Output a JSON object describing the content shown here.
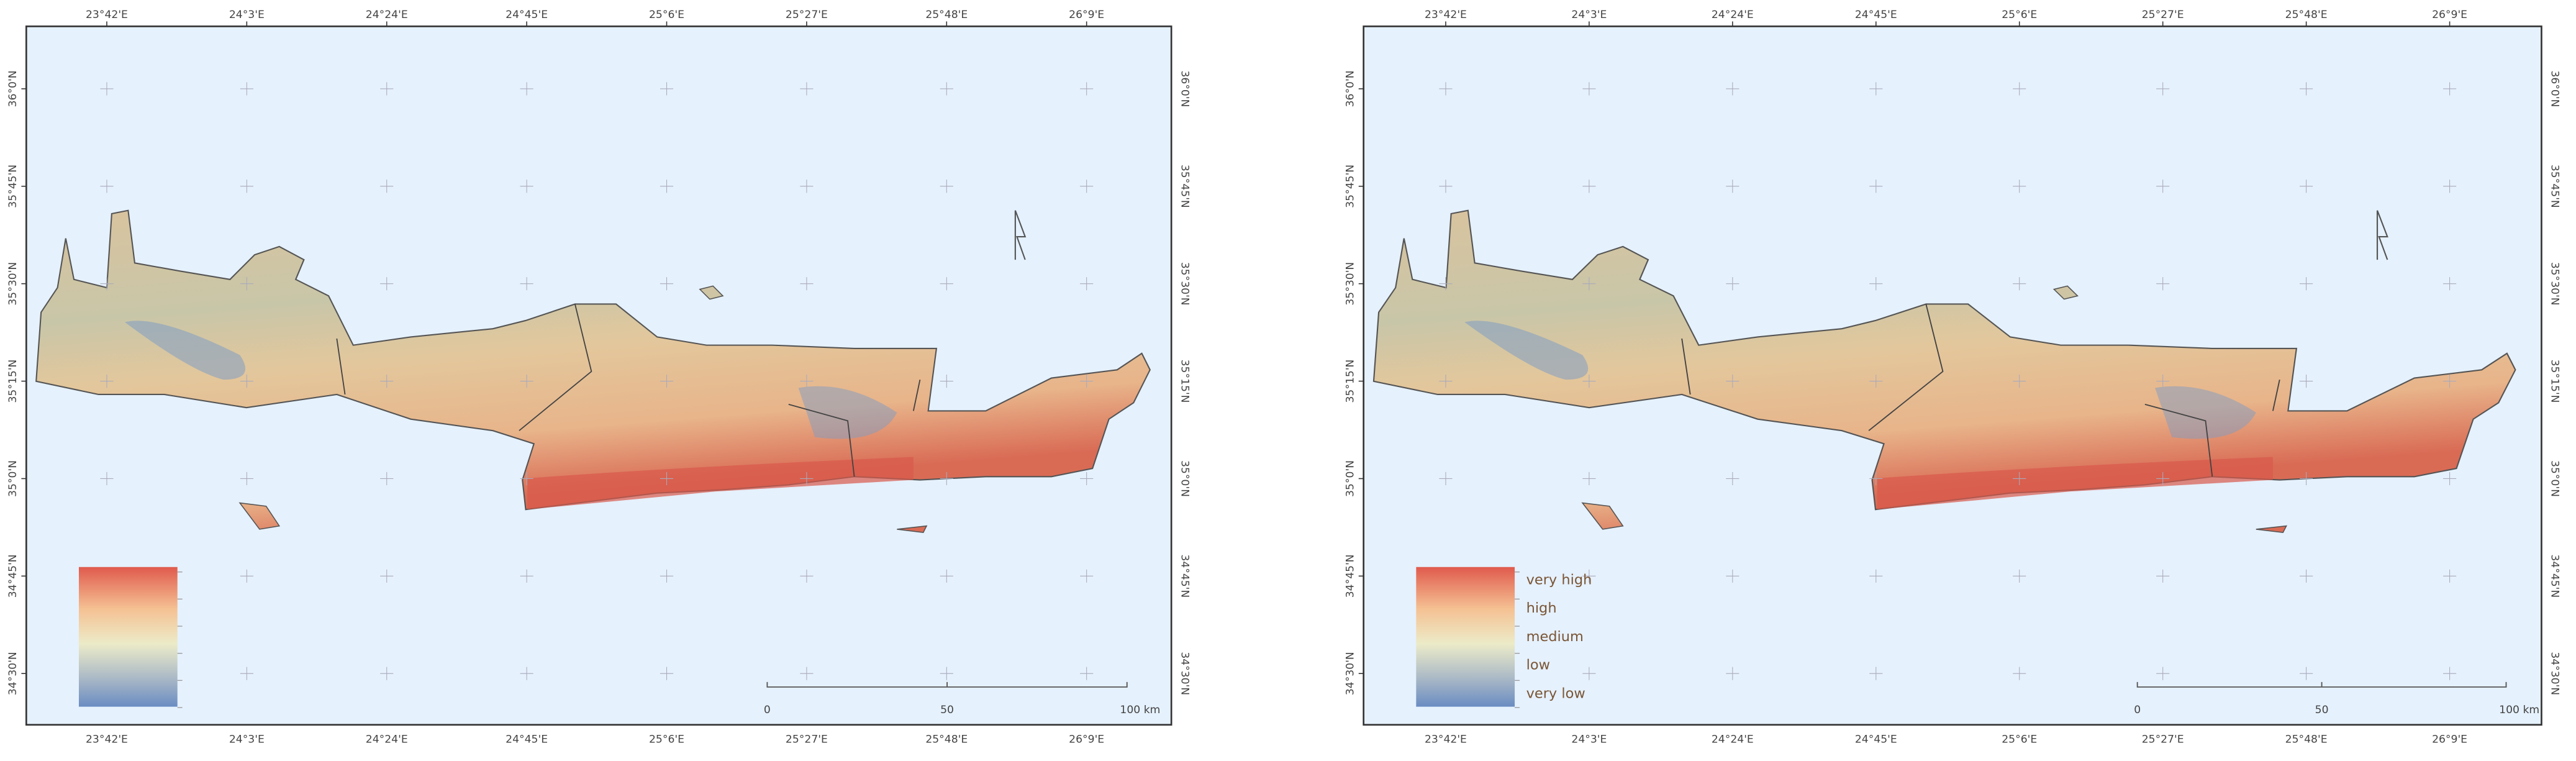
{
  "maps": [
    {
      "lon_labels": [
        "23°42'E",
        "24°3'E",
        "24°24'E",
        "24°45'E",
        "25°6'E",
        "25°27'E",
        "25°48'E",
        "26°9'E"
      ],
      "lat_labels": [
        "36°0'N",
        "35°45'N",
        "35°30'N",
        "35°15'N",
        "35°0'N",
        "34°45'N",
        "34°30'N"
      ],
      "scale_labels": [
        "0",
        "50",
        "100 km"
      ]
    },
    {
      "lon_labels": [
        "23°42'E",
        "24°3'E",
        "24°24'E",
        "24°45'E",
        "25°6'E",
        "25°27'E",
        "25°48'E",
        "26°9'E"
      ],
      "lat_labels": [
        "36°0'N",
        "35°45'N",
        "35°30'N",
        "35°15'N",
        "35°0'N",
        "34°45'N",
        "34°30'N"
      ],
      "legend_labels": [
        "very high",
        "high",
        "medium",
        "low",
        "very low"
      ],
      "scale_labels": [
        "0",
        "50",
        "100 km"
      ]
    }
  ]
}
